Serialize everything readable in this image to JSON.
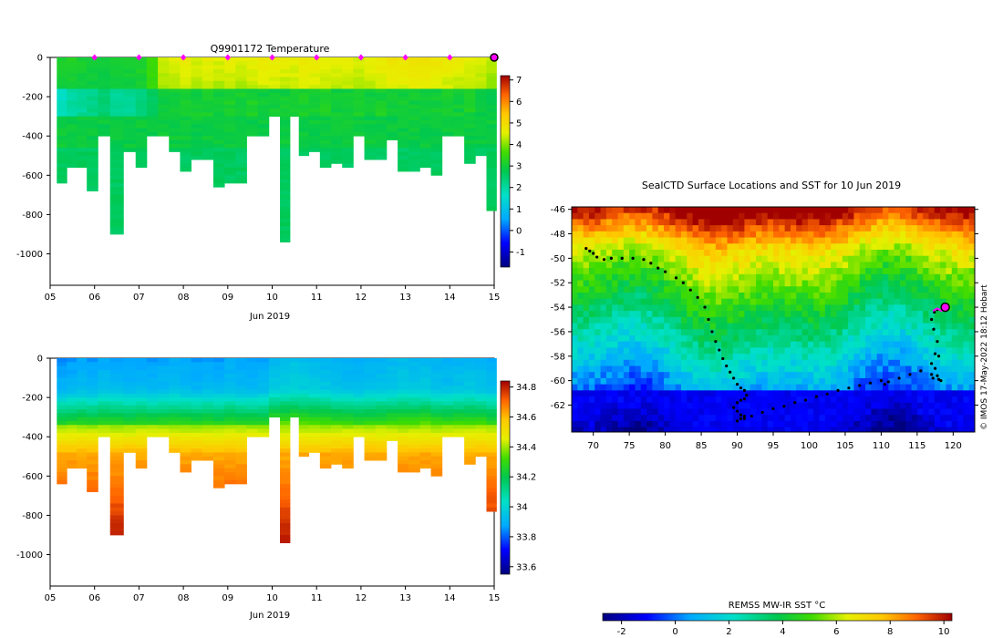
{
  "credit": "© IMOS 17-May-2022 18:12 Hobart",
  "chart_data": [
    {
      "type": "heatmap",
      "title": "Q9901172  Temperature",
      "xlabel": "Jun 2019",
      "ylabel": "",
      "xlim": [
        5,
        15
      ],
      "ylim": [
        0,
        -1160
      ],
      "x_tick_labels": [
        "05",
        "06",
        "07",
        "08",
        "09",
        "10",
        "11",
        "12",
        "13",
        "14",
        "15"
      ],
      "y_ticks": [
        0,
        -200,
        -400,
        -600,
        -800,
        -1000
      ],
      "y_tick_labels": [
        "0",
        "-200",
        "-400",
        "-600",
        "-800",
        "-1000"
      ],
      "colorbar": {
        "min": -1.7,
        "max": 7.2,
        "ticks": [
          7,
          6,
          5,
          4,
          3,
          2,
          1,
          0,
          -1
        ],
        "tick_labels": [
          "7",
          "6",
          "5",
          "4",
          "3",
          "2",
          "1",
          "0",
          "-1"
        ]
      },
      "marker_days": [
        6,
        7,
        8,
        9,
        10,
        11,
        12,
        13,
        14
      ],
      "latest_marker_day": 15,
      "profiles": {
        "times": [
          5.25,
          5.5,
          5.7,
          5.95,
          6.2,
          6.5,
          6.8,
          7.05,
          7.3,
          7.55,
          7.8,
          8.05,
          8.3,
          8.55,
          8.8,
          9.05,
          9.3,
          9.55,
          9.8,
          10.05,
          10.3,
          10.5,
          10.7,
          10.95,
          11.2,
          11.45,
          11.7,
          11.95,
          12.2,
          12.45,
          12.7,
          12.95,
          13.2,
          13.45,
          13.7,
          13.95,
          14.2,
          14.45,
          14.7,
          14.95
        ],
        "max_depth": [
          640,
          550,
          550,
          670,
          400,
          900,
          470,
          560,
          400,
          400,
          480,
          570,
          510,
          510,
          650,
          630,
          630,
          400,
          400,
          300,
          940,
          300,
          490,
          480,
          550,
          530,
          550,
          400,
          520,
          520,
          420,
          580,
          580,
          560,
          590,
          400,
          400,
          530,
          500,
          770
        ],
        "surface_temp": [
          3.2,
          3.2,
          3.1,
          3.0,
          3.0,
          3.1,
          3.1,
          3.2,
          3.6,
          4.4,
          4.5,
          4.6,
          4.5,
          4.6,
          4.5,
          4.6,
          4.5,
          4.6,
          4.7,
          4.7,
          4.6,
          4.6,
          4.7,
          4.7,
          4.6,
          4.6,
          4.6,
          4.5,
          4.6,
          4.7,
          4.8,
          4.8,
          4.9,
          4.9,
          4.8,
          4.7,
          4.6,
          4.5,
          4.5,
          4.3
        ],
        "min_temp": [
          1.6,
          1.9,
          2.0,
          2.1,
          2.3,
          2.0,
          2.0,
          2.2,
          2.5,
          2.6,
          2.6,
          2.7,
          2.6,
          2.7,
          2.6,
          2.7,
          2.6,
          2.7,
          2.6,
          2.6,
          2.6,
          2.6,
          2.7,
          2.6,
          2.7,
          2.6,
          2.6,
          2.7,
          2.6,
          2.7,
          2.6,
          2.6,
          2.6,
          2.6,
          2.6,
          2.7,
          2.6,
          2.7,
          2.5,
          2.4
        ]
      }
    },
    {
      "type": "heatmap",
      "title": "",
      "xlabel": "Jun 2019",
      "ylabel": "",
      "xlim": [
        5,
        15
      ],
      "ylim": [
        0,
        -1160
      ],
      "x_tick_labels": [
        "05",
        "06",
        "07",
        "08",
        "09",
        "10",
        "11",
        "12",
        "13",
        "14",
        "15"
      ],
      "y_ticks": [
        0,
        -200,
        -400,
        -600,
        -800,
        -1000
      ],
      "y_tick_labels": [
        "0",
        "-200",
        "-400",
        "-600",
        "-800",
        "-1000"
      ],
      "colorbar": {
        "min": 33.55,
        "max": 34.84,
        "ticks": [
          34.8,
          34.6,
          34.4,
          34.2,
          34,
          33.8,
          33.6
        ],
        "tick_labels": [
          "34.8",
          "34.6",
          "34.4",
          "34.2",
          "34",
          "33.8",
          "33.6"
        ]
      },
      "profiles": {
        "times": [
          5.25,
          5.5,
          5.7,
          5.95,
          6.2,
          6.5,
          6.8,
          7.05,
          7.3,
          7.55,
          7.8,
          8.05,
          8.3,
          8.55,
          8.8,
          9.05,
          9.3,
          9.55,
          9.8,
          10.05,
          10.3,
          10.5,
          10.7,
          10.95,
          11.2,
          11.45,
          11.7,
          11.95,
          12.2,
          12.45,
          12.7,
          12.95,
          13.2,
          13.45,
          13.7,
          13.95,
          14.2,
          14.45,
          14.7,
          14.95
        ],
        "max_depth": [
          640,
          550,
          550,
          670,
          400,
          900,
          470,
          560,
          400,
          400,
          480,
          570,
          510,
          510,
          650,
          630,
          630,
          400,
          400,
          300,
          940,
          300,
          490,
          480,
          550,
          530,
          550,
          400,
          520,
          520,
          420,
          580,
          580,
          560,
          590,
          400,
          400,
          530,
          500,
          770
        ],
        "surface_sal": [
          33.85,
          33.86,
          33.87,
          33.86,
          33.88,
          33.87,
          33.86,
          33.87,
          33.86,
          33.87,
          33.88,
          33.87,
          33.86,
          33.87,
          33.86,
          33.88,
          33.87,
          33.86,
          33.87,
          33.92,
          33.93,
          33.94,
          33.93,
          33.92,
          33.91,
          33.9,
          33.89,
          33.88,
          33.89,
          33.9,
          33.91,
          33.92,
          33.91,
          33.92,
          33.9,
          33.89,
          33.9,
          33.91,
          33.9,
          33.88
        ]
      }
    },
    {
      "type": "heatmap",
      "title": "SealCTD Surface Locations and SST for 10 Jun 2019",
      "xlabel": "",
      "ylabel": "",
      "xlim": [
        67,
        123
      ],
      "ylim": [
        -64.2,
        -45.8
      ],
      "x_tick_labels": [
        "70",
        "75",
        "80",
        "85",
        "90",
        "95",
        "100",
        "105",
        "110",
        "115",
        "120"
      ],
      "x_ticks": [
        70,
        75,
        80,
        85,
        90,
        95,
        100,
        105,
        110,
        115,
        120
      ],
      "y_tick_labels": [
        "-46",
        "-48",
        "-50",
        "-52",
        "-54",
        "-56",
        "-58",
        "-60",
        "-62"
      ],
      "y_ticks": [
        -46,
        -48,
        -50,
        -52,
        -54,
        -56,
        -58,
        -60,
        -62
      ],
      "colorbar": {
        "label": "REMSS MW-IR SST °C",
        "min": -2.7,
        "max": 10.3,
        "ticks": [
          -2,
          0,
          2,
          4,
          6,
          8,
          10
        ],
        "tick_labels": [
          "-2",
          "0",
          "2",
          "4",
          "6",
          "8",
          "10"
        ]
      },
      "track": {
        "lon": [
          69.0,
          69.5,
          70.0,
          70.5,
          71.5,
          72.5,
          74.0,
          75.5,
          77.0,
          78.0,
          79.0,
          80.0,
          81.5,
          82.5,
          83.5,
          84.5,
          85.5,
          86.0,
          86.5,
          87.0,
          87.5,
          88.0,
          88.5,
          89.0,
          89.5,
          90.0,
          90.5,
          91.0,
          91.3,
          91.0,
          90.5,
          90.0,
          89.5,
          90.0,
          90.5,
          91.0,
          90.5,
          90.0,
          91.0,
          92.0,
          93.5,
          95.0,
          96.5,
          98.0,
          99.5,
          101.0,
          102.5,
          104.0,
          105.5,
          107.0,
          108.5,
          110.0,
          110.5,
          111.0,
          112.5,
          114.0,
          115.5,
          117.0,
          117.5,
          117.8,
          117.3,
          117.0,
          117.4,
          117.8,
          118.0,
          117.5,
          117.0,
          117.2,
          117.8,
          118.0,
          118.3
        ],
        "lat": [
          -49.2,
          -49.4,
          -49.6,
          -49.9,
          -50.1,
          -50.0,
          -50.0,
          -50.0,
          -50.1,
          -50.4,
          -50.8,
          -51.1,
          -51.6,
          -52.0,
          -52.6,
          -53.2,
          -54.0,
          -55.0,
          -56.0,
          -56.8,
          -57.5,
          -58.2,
          -58.8,
          -59.3,
          -59.8,
          -60.3,
          -60.6,
          -60.8,
          -61.2,
          -61.5,
          -61.6,
          -61.8,
          -62.2,
          -62.5,
          -62.8,
          -62.9,
          -63.1,
          -63.3,
          -63.1,
          -62.9,
          -62.6,
          -62.3,
          -62.1,
          -61.8,
          -61.6,
          -61.3,
          -61.1,
          -60.8,
          -60.6,
          -60.4,
          -60.2,
          -60.0,
          -60.3,
          -60.1,
          -59.8,
          -59.5,
          -59.2,
          -58.6,
          -57.8,
          -56.8,
          -55.8,
          -55.0,
          -54.4,
          -54.2,
          -58.0,
          -59.0,
          -59.5,
          -59.8,
          -59.6,
          -59.9,
          -60.0
        ],
        "recent_lon": [
          117.2,
          117.8,
          118.4,
          118.9
        ],
        "recent_lat": [
          -54.3,
          -54.1,
          -54.3,
          -54.0
        ],
        "current_position": [
          118.9,
          -54.0
        ]
      }
    }
  ]
}
